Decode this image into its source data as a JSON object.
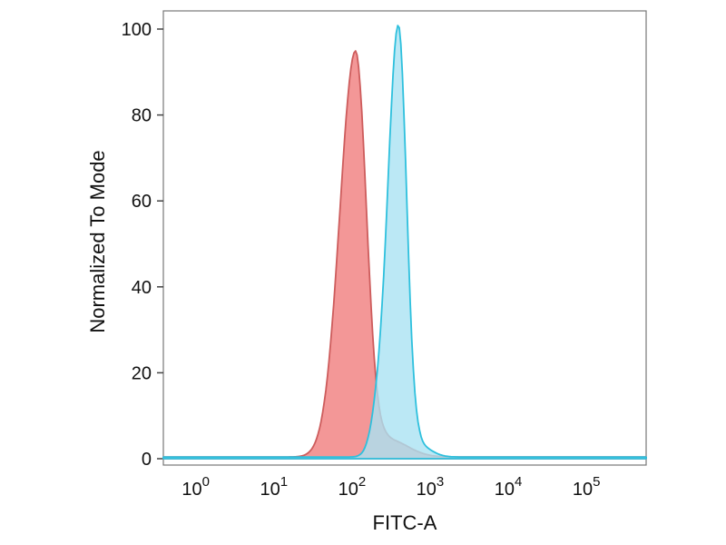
{
  "chart_data": {
    "type": "area",
    "subtype": "flow-cytometry-histogram-overlay",
    "title": "",
    "xlabel": "FITC-A",
    "ylabel": "Normalized To Mode",
    "x_scale": "log10",
    "x_range_log": [
      -0.38,
      5.8
    ],
    "x_tick_base": "10",
    "x_tick_exponents": [
      0,
      1,
      2,
      3,
      4,
      5
    ],
    "ylim": [
      0,
      100
    ],
    "y_ticks": [
      0,
      20,
      40,
      60,
      80,
      100
    ],
    "grid": "off",
    "legend": "none",
    "colors": {
      "frame": "#777777",
      "tick": "#444444",
      "text": "#111111",
      "background": "#ffffff"
    },
    "series": [
      {
        "id": "red-peak",
        "name": "red histogram (left peak)",
        "peak_x": 120,
        "peak_y": 95,
        "stroke": "#cd5c5c",
        "fill": "rgba(240,128,128,0.82)",
        "baseline": 0.4,
        "components": [
          {
            "mu": 2.08,
            "sigma_l": 0.2,
            "sigma_r": 0.14,
            "amp": 94.5
          },
          {
            "mu": 2.5,
            "sigma_l": 0.12,
            "sigma_r": 0.25,
            "amp": 4.0
          }
        ],
        "key_points": [
          [
            10,
            0
          ],
          [
            30,
            2
          ],
          [
            50,
            15
          ],
          [
            80,
            60
          ],
          [
            120,
            95
          ],
          [
            180,
            50
          ],
          [
            250,
            12
          ],
          [
            400,
            3
          ],
          [
            1000,
            0
          ]
        ]
      },
      {
        "id": "cyan-peak",
        "name": "cyan histogram (right peak)",
        "peak_x": 430,
        "peak_y": 100,
        "stroke": "#2ec0dd",
        "fill": "rgba(170,226,242,0.80)",
        "baseline": 0.4,
        "components": [
          {
            "mu": 2.63,
            "sigma_l": 0.13,
            "sigma_r": 0.105,
            "amp": 99.5
          },
          {
            "mu": 2.38,
            "sigma_l": 0.1,
            "sigma_r": 0.12,
            "amp": 9.0
          },
          {
            "mu": 2.9,
            "sigma_l": 0.06,
            "sigma_r": 0.15,
            "amp": 2.5
          }
        ],
        "key_points": [
          [
            100,
            0
          ],
          [
            160,
            3
          ],
          [
            250,
            12
          ],
          [
            320,
            45
          ],
          [
            430,
            100
          ],
          [
            600,
            35
          ],
          [
            800,
            5
          ],
          [
            1500,
            1
          ],
          [
            3000,
            0
          ]
        ]
      }
    ]
  }
}
